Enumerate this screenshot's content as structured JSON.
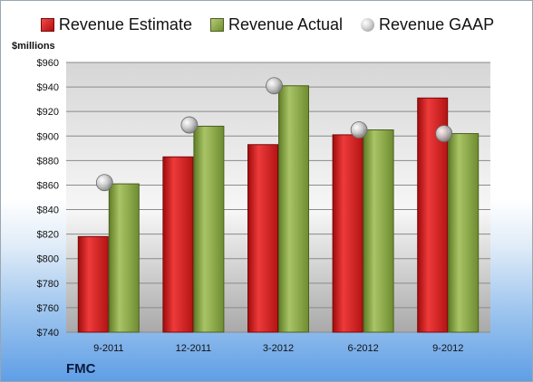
{
  "chart_data": {
    "type": "bar",
    "categories": [
      "9-2011",
      "12-2011",
      "3-2012",
      "6-2012",
      "9-2012"
    ],
    "series": [
      {
        "name": "Revenue Estimate",
        "kind": "bar",
        "color": "#d42020",
        "values": [
          818,
          883,
          893,
          901,
          931
        ]
      },
      {
        "name": "Revenue Actual",
        "kind": "bar",
        "color": "#8fae4a",
        "values": [
          861,
          908,
          941,
          905,
          902
        ]
      },
      {
        "name": "Revenue GAAP",
        "kind": "marker",
        "color": "#b8b8b8",
        "values": [
          862,
          909,
          941,
          905,
          902
        ]
      }
    ],
    "ylabel": "$millions",
    "ylim": [
      740,
      960
    ],
    "yticks": [
      "$740",
      "$760",
      "$780",
      "$800",
      "$820",
      "$840",
      "$860",
      "$880",
      "$900",
      "$920",
      "$940",
      "$960"
    ],
    "grid": true,
    "legend_position": "top"
  },
  "company": "FMC"
}
